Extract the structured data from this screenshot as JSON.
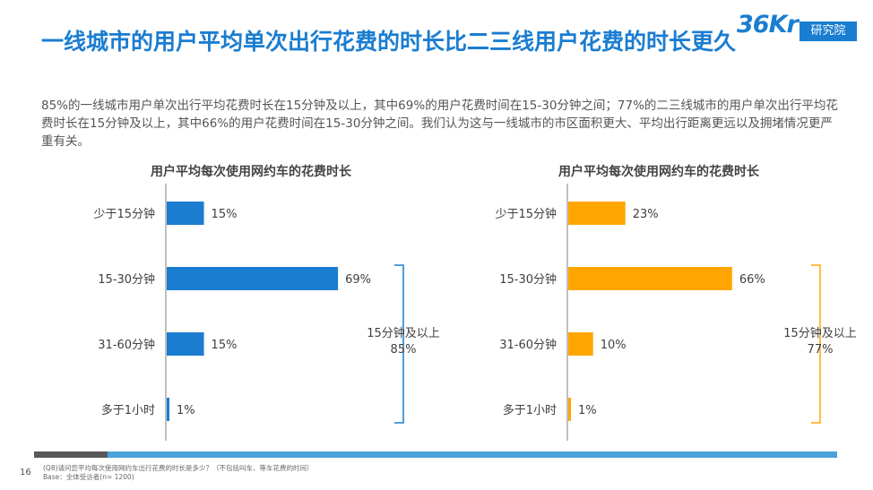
{
  "title": "一线城市的用户平均单次出行花费的时长比二三线用户花费的时长更久",
  "logo": {
    "mark": "36Kr",
    "label": "研究院"
  },
  "description": "85%的一线城市用户单次出行平均花费时长在15分钟及以上，其中69%的用户花费时间在15-30分钟之间；77%的二三线城市的用户单次出行平均花费时长在15分钟及以上，其中66%的用户花费时间在15-30分钟之间。我们认为这与一线城市的市区面积更大、平均出行距离更远以及拥堵情况更严重有关。",
  "colors": {
    "accent": "#1a7dd0",
    "series1": "#1a7dd0",
    "series2": "#ffa500",
    "bar_dark": "#595959",
    "bar_light": "#49a3db"
  },
  "chart_data": [
    {
      "type": "bar",
      "orientation": "horizontal",
      "title": "用户平均每次使用网约车的花费时长",
      "categories": [
        "少于15分钟",
        "15-30分钟",
        "31-60分钟",
        "多于1小时"
      ],
      "values": [
        15,
        69,
        15,
        1
      ],
      "value_labels": [
        "15%",
        "69%",
        "15%",
        "1%"
      ],
      "unit": "%",
      "color": "#1a7dd0",
      "bracket": {
        "line1": "15分钟及以上",
        "line2": "85%"
      }
    },
    {
      "type": "bar",
      "orientation": "horizontal",
      "title": "用户平均每次使用网约车的花费时长",
      "categories": [
        "少于15分钟",
        "15-30分钟",
        "31-60分钟",
        "多于1小时"
      ],
      "values": [
        23,
        66,
        10,
        1
      ],
      "value_labels": [
        "23%",
        "66%",
        "10%",
        "1%"
      ],
      "unit": "%",
      "color": "#ffa500",
      "bracket": {
        "line1": "15分钟及以上",
        "line2": "77%"
      }
    }
  ],
  "footer": {
    "page_number": "16",
    "question": "(Q8)请问您平均每次使用网约车出行花费的时长是多少？（不包括叫车、等车花费的时间）",
    "base": "Base：全体受访者(n= 1200)"
  }
}
